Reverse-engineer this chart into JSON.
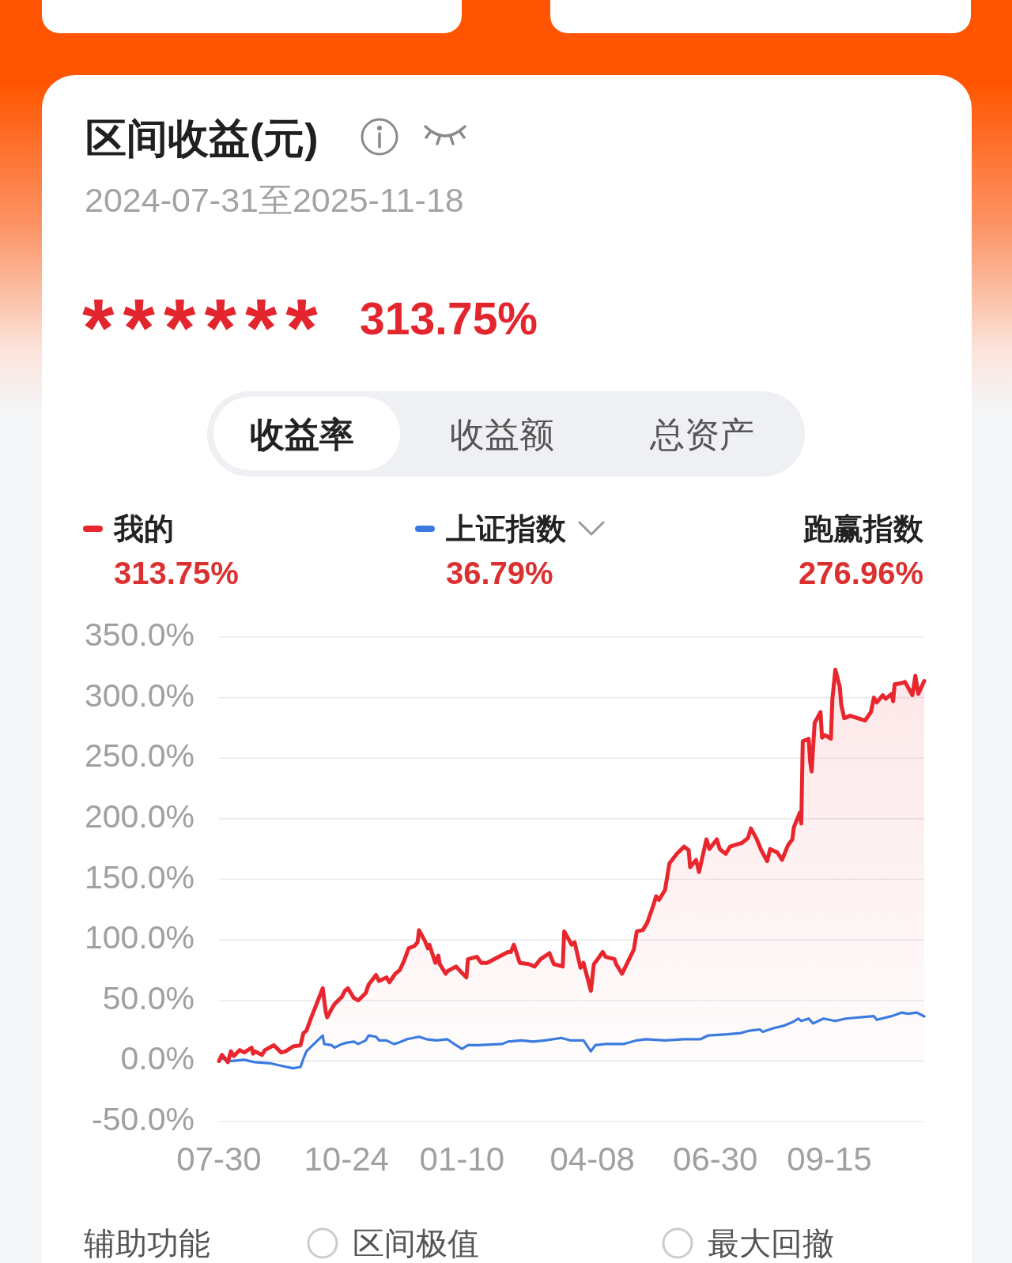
{
  "chart_data": {
    "type": "line",
    "title": "区间收益(元)",
    "subtitle": "2024-07-31至2025-11-18",
    "annotations": [
      "******",
      "313.75%",
      "收益率",
      "收益额",
      "总资产",
      "313.75%",
      "36.79%",
      "跑赢指数",
      "276.96%",
      "辅助功能",
      "区间极值",
      "最大回撤"
    ],
    "xlim": [
      "2024-07-30",
      "2025-11-18"
    ],
    "xticks": [
      {
        "value": "2024-07-30",
        "label": "07-30"
      },
      {
        "value": "2024-10-24",
        "label": "10-24"
      },
      {
        "value": "2025-01-10",
        "label": "01-10"
      },
      {
        "value": "2025-04-08",
        "label": "04-08"
      },
      {
        "value": "2025-06-30",
        "label": "06-30"
      },
      {
        "value": "2025-09-15",
        "label": "09-15"
      }
    ],
    "ylim": [
      -50,
      350
    ],
    "yticks": [
      {
        "value": 350,
        "label": "350.0%"
      },
      {
        "value": 300,
        "label": "300.0%"
      },
      {
        "value": 250,
        "label": "250.0%"
      },
      {
        "value": 200,
        "label": "200.0%"
      },
      {
        "value": 150,
        "label": "150.0%"
      },
      {
        "value": 100,
        "label": "100.0%"
      },
      {
        "value": 50,
        "label": "50.0%"
      },
      {
        "value": 0,
        "label": "0.0%"
      },
      {
        "value": -50,
        "label": "-50.0%"
      }
    ],
    "grid": "y",
    "legend": "top",
    "series": [
      {
        "name": "我的",
        "type": "area",
        "color": "#e8262d",
        "x": [
          "2024-07-30",
          "2024-08-01",
          "2024-08-05",
          "2024-08-07",
          "2024-08-09",
          "2024-08-13",
          "2024-08-16",
          "2024-08-21",
          "2024-08-22",
          "2024-08-23",
          "2024-08-28",
          "2024-08-30",
          "2024-09-05",
          "2024-09-10",
          "2024-09-13",
          "2024-09-18",
          "2024-09-23",
          "2024-09-25",
          "2024-09-27",
          "2024-09-30",
          "2024-10-08",
          "2024-10-10",
          "2024-10-11",
          "2024-10-14",
          "2024-10-16",
          "2024-10-21",
          "2024-10-23",
          "2024-10-25",
          "2024-10-29",
          "2024-11-01",
          "2024-11-06",
          "2024-11-08",
          "2024-11-13",
          "2024-11-15",
          "2024-11-20",
          "2024-11-22",
          "2024-11-26",
          "2024-11-29",
          "2024-12-02",
          "2024-12-05",
          "2024-12-09",
          "2024-12-11",
          "2024-12-12",
          "2024-12-16",
          "2024-12-18",
          "2024-12-19",
          "2024-12-23",
          "2024-12-25",
          "2024-12-26",
          "2024-12-30",
          "2024-12-31",
          "2025-01-06",
          "2025-01-09",
          "2025-01-13",
          "2025-01-14",
          "2025-01-20",
          "2025-01-23",
          "2025-01-27",
          "2025-02-10",
          "2025-02-12",
          "2025-02-14",
          "2025-02-18",
          "2025-02-24",
          "2025-02-28",
          "2025-03-04",
          "2025-03-10",
          "2025-03-13",
          "2025-03-19",
          "2025-03-20",
          "2025-03-25",
          "2025-03-27",
          "2025-03-31",
          "2025-04-02",
          "2025-04-07",
          "2025-04-09",
          "2025-04-11",
          "2025-04-15",
          "2025-04-17",
          "2025-04-23",
          "2025-04-24",
          "2025-04-28",
          "2025-05-06",
          "2025-05-08",
          "2025-05-12",
          "2025-05-15",
          "2025-05-19",
          "2025-05-21",
          "2025-05-23",
          "2025-05-27",
          "2025-05-30",
          "2025-06-04",
          "2025-06-09",
          "2025-06-12",
          "2025-06-13",
          "2025-06-17",
          "2025-06-19",
          "2025-06-24",
          "2025-06-26",
          "2025-07-01",
          "2025-07-03",
          "2025-07-07",
          "2025-07-10",
          "2025-07-15",
          "2025-07-18",
          "2025-07-22",
          "2025-07-24",
          "2025-07-28",
          "2025-07-31",
          "2025-08-04",
          "2025-08-06",
          "2025-08-11",
          "2025-08-14",
          "2025-08-18",
          "2025-08-21",
          "2025-08-22",
          "2025-08-26",
          "2025-08-27",
          "2025-08-28",
          "2025-09-01",
          "2025-09-02",
          "2025-09-03",
          "2025-09-05",
          "2025-09-09",
          "2025-09-10",
          "2025-09-12",
          "2025-09-16",
          "2025-09-17",
          "2025-09-19",
          "2025-09-22",
          "2025-09-23",
          "2025-09-25",
          "2025-09-29",
          "2025-10-09",
          "2025-10-13",
          "2025-10-15",
          "2025-10-17",
          "2025-10-21",
          "2025-10-23",
          "2025-10-27",
          "2025-10-28",
          "2025-10-29",
          "2025-11-03",
          "2025-11-05",
          "2025-11-10",
          "2025-11-12",
          "2025-11-14",
          "2025-11-18"
        ],
        "values": [
          0,
          5,
          -1,
          8,
          4,
          9,
          7,
          11,
          6,
          8,
          5,
          9,
          13,
          7,
          8,
          12,
          13,
          23,
          25,
          35,
          60,
          41,
          36,
          43,
          47,
          53,
          58,
          60,
          52,
          50,
          56,
          63,
          71,
          66,
          69,
          65,
          72,
          75,
          83,
          93,
          95,
          98,
          108,
          99,
          93,
          96,
          81,
          87,
          80,
          72,
          74,
          78,
          74,
          69,
          84,
          86,
          81,
          81,
          90,
          90,
          96,
          81,
          80,
          78,
          84,
          89,
          80,
          78,
          107,
          96,
          98,
          77,
          81,
          58,
          80,
          83,
          90,
          86,
          84,
          80,
          72,
          92,
          107,
          108,
          114,
          128,
          136,
          133,
          141,
          163,
          171,
          177,
          174,
          160,
          166,
          156,
          183,
          175,
          183,
          175,
          171,
          177,
          179,
          180,
          184,
          192,
          183,
          174,
          165,
          175,
          172,
          166,
          178,
          183,
          193,
          205,
          196,
          264,
          266,
          247,
          239,
          279,
          288,
          267,
          269,
          266,
          299,
          323,
          309,
          294,
          283,
          285,
          281,
          288,
          300,
          296,
          302,
          299,
          303,
          297,
          311,
          312,
          313,
          302,
          318,
          303,
          313.75
        ]
      },
      {
        "name": "上证指数",
        "color": "#3b7be0",
        "x": [
          "2024-07-30",
          "2024-07-31",
          "2024-08-05",
          "2024-08-08",
          "2024-08-16",
          "2024-08-23",
          "2024-09-03",
          "2024-09-10",
          "2024-09-18",
          "2024-09-23",
          "2024-09-25",
          "2024-09-27",
          "2024-10-08",
          "2024-10-09",
          "2024-10-14",
          "2024-10-16",
          "2024-10-21",
          "2024-10-24",
          "2024-10-29",
          "2024-11-01",
          "2024-11-06",
          "2024-11-08",
          "2024-11-13",
          "2024-11-15",
          "2024-11-20",
          "2024-11-25",
          "2024-11-28",
          "2024-12-04",
          "2024-12-12",
          "2024-12-17",
          "2024-12-24",
          "2024-12-31",
          "2025-01-06",
          "2025-01-10",
          "2025-01-14",
          "2025-01-21",
          "2025-02-06",
          "2025-02-10",
          "2025-02-19",
          "2025-02-27",
          "2025-03-07",
          "2025-03-18",
          "2025-03-24",
          "2025-04-02",
          "2025-04-07",
          "2025-04-10",
          "2025-04-17",
          "2025-04-29",
          "2025-05-08",
          "2025-05-14",
          "2025-05-27",
          "2025-06-09",
          "2025-06-20",
          "2025-06-25",
          "2025-07-08",
          "2025-07-17",
          "2025-07-23",
          "2025-07-30",
          "2025-08-01",
          "2025-08-08",
          "2025-08-15",
          "2025-08-21",
          "2025-08-25",
          "2025-08-27",
          "2025-09-01",
          "2025-09-04",
          "2025-09-11",
          "2025-09-19",
          "2025-09-26",
          "2025-10-15",
          "2025-10-17",
          "2025-10-27",
          "2025-11-03",
          "2025-11-07",
          "2025-11-13",
          "2025-11-18"
        ],
        "values": [
          0,
          3,
          0,
          0,
          1,
          -1,
          -2,
          -4,
          -6,
          -5,
          2,
          8,
          21,
          14,
          13,
          11,
          14,
          15,
          16,
          14,
          17,
          21,
          20,
          17,
          17,
          14,
          15,
          18,
          20,
          18,
          17,
          18,
          13,
          10,
          13,
          13,
          14,
          16,
          17,
          16,
          17,
          19,
          17,
          17,
          8,
          13,
          14,
          14,
          17,
          18,
          17,
          18,
          18,
          21,
          22,
          23,
          25,
          26,
          24,
          27,
          29,
          32,
          35,
          33,
          35,
          31,
          35,
          33,
          35,
          37,
          34,
          37,
          40,
          39,
          40,
          36.79
        ]
      }
    ]
  }
}
